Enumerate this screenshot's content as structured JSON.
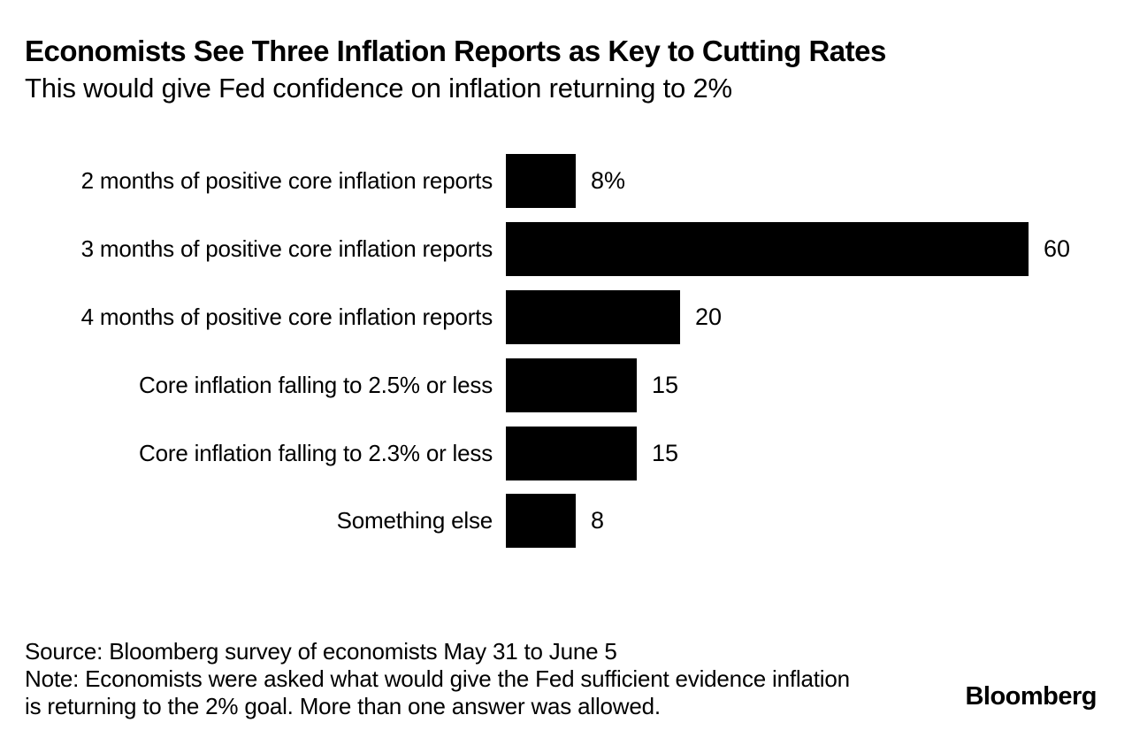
{
  "header": {
    "title": "Economists See Three Inflation Reports as Key to Cutting Rates",
    "subtitle": "This would give Fed confidence on inflation returning to 2%"
  },
  "chart_data": {
    "type": "bar",
    "orientation": "horizontal",
    "title": "Economists See Three Inflation Reports as Key to Cutting Rates",
    "subtitle": "This would give Fed confidence on inflation returning to 2%",
    "categories": [
      "2 months of positive core inflation reports",
      "3 months of positive core inflation reports",
      "4 months of positive core inflation reports",
      "Core inflation falling to 2.5% or less",
      "Core inflation falling to 2.3% or less",
      "Something else"
    ],
    "values": [
      8,
      60,
      20,
      15,
      15,
      8
    ],
    "value_labels": [
      "8%",
      "60",
      "20",
      "15",
      "15",
      "8"
    ],
    "xlabel": "",
    "ylabel": "",
    "xlim": [
      0,
      60
    ],
    "grid": false,
    "legend": false,
    "bar_color": "#000000",
    "background_color": "#ffffff",
    "text_color": "#000000"
  },
  "footer": {
    "source": "Source: Bloomberg survey of economists May 31 to June 5",
    "note_line1": "Note: Economists were asked what would give the Fed sufficient evidence inflation",
    "note_line2": "is returning to the 2% goal. More than one answer was allowed.",
    "logo": "Bloomberg"
  }
}
